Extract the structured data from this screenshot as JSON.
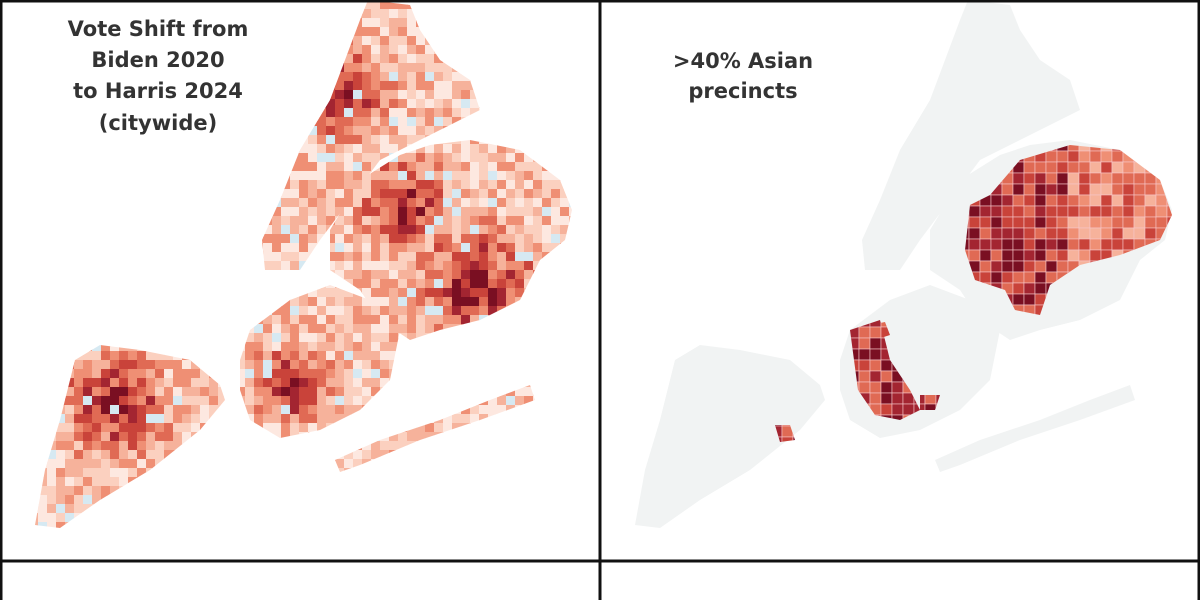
{
  "panels": [
    {
      "title_lines": [
        "Vote Shift from",
        "Biden 2020",
        "to Harris 2024",
        "(citywide)"
      ]
    },
    {
      "title_lines": [
        ">40% Asian",
        "precincts"
      ]
    }
  ]
}
